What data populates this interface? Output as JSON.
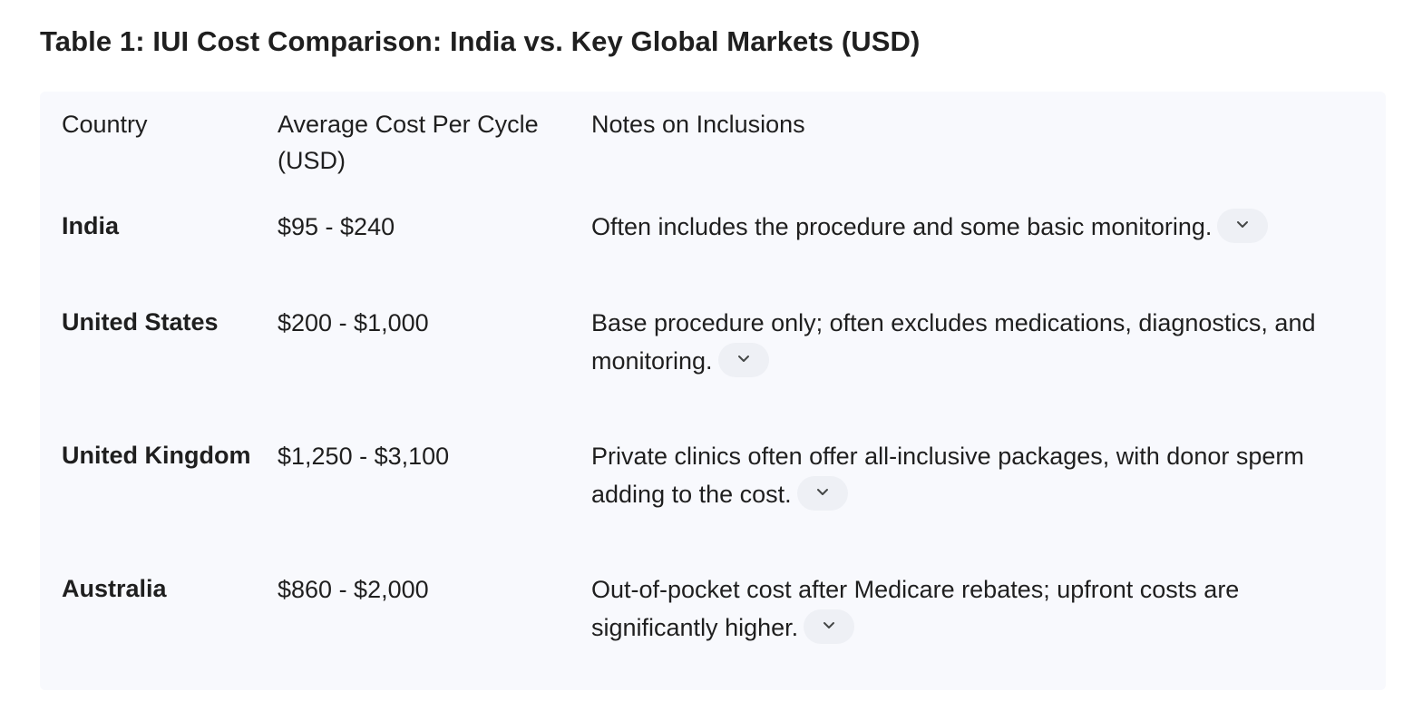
{
  "title": "Table 1: IUI Cost Comparison: India vs. Key Global Markets (USD)",
  "table": {
    "headers": {
      "country": "Country",
      "cost": "Average Cost Per Cycle (USD)",
      "notes": "Notes on Inclusions"
    },
    "rows": [
      {
        "country": "India",
        "cost": "$95 - $240",
        "notes": "Often includes the procedure and some basic monitoring."
      },
      {
        "country": "United States",
        "cost": "$200 - $1,000",
        "notes": "Base procedure only; often excludes medications, diagnostics, and monitoring."
      },
      {
        "country": "United Kingdom",
        "cost": "$1,250 - $3,100",
        "notes": "Private clinics often offer all-inclusive packages, with donor sperm adding to the cost."
      },
      {
        "country": "Australia",
        "cost": "$860 - $2,000",
        "notes": "Out-of-pocket cost after Medicare rebates; upfront costs are significantly higher."
      }
    ]
  },
  "icons": {
    "expand": "chevron-down-icon"
  },
  "colors": {
    "table_background": "#f8f9fd",
    "chip_background": "#eef0f5",
    "text": "#1f1f1f"
  }
}
